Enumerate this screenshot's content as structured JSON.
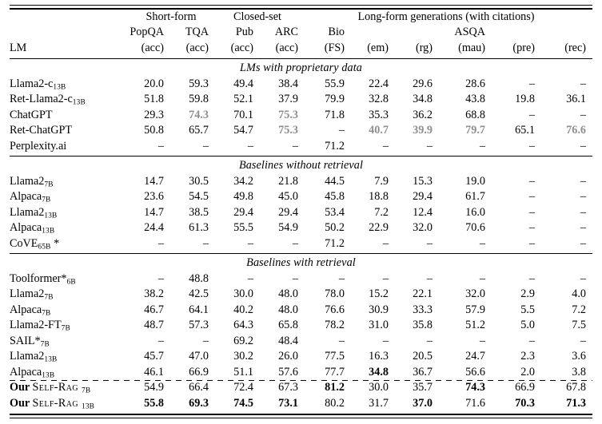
{
  "colors": {
    "highlight_gray": "#8f8f8f",
    "text": "#000000",
    "background": "#ffffff"
  },
  "table": {
    "lm_header": "LM",
    "groups": [
      {
        "label": "Short-form",
        "cols": 2
      },
      {
        "label": "Closed-set",
        "cols": 2
      },
      {
        "label": "Long-form generations (with citations)",
        "cols": 6
      }
    ],
    "col_names": [
      "PopQA",
      "TQA",
      "Pub",
      "ARC",
      "Bio",
      "",
      "",
      "ASQA",
      "",
      ""
    ],
    "col_metrics": [
      "(acc)",
      "(acc)",
      "(acc)",
      "(acc)",
      "(FS)",
      "(em)",
      "(rg)",
      "(mau)",
      "(pre)",
      "(rec)"
    ],
    "sections": [
      {
        "title": "LMs with proprietary data",
        "dashed_top": false,
        "rows": [
          {
            "lm": {
              "text": "Llama2-c",
              "sub": "13B"
            },
            "values": [
              "20.0",
              "59.3",
              "49.4",
              "38.4",
              "55.9",
              "22.4",
              "29.6",
              "28.6",
              "–",
              "–"
            ],
            "styles": "nnnnnnnnnn"
          },
          {
            "lm": {
              "text": "Ret-Llama2-c",
              "sub": "13B"
            },
            "values": [
              "51.8",
              "59.8",
              "52.1",
              "37.9",
              "79.9",
              "32.8",
              "34.8",
              "43.8",
              "19.8",
              "36.1"
            ],
            "styles": "nnnnnnnnnn"
          },
          {
            "lm": {
              "text": "ChatGPT"
            },
            "values": [
              "29.3",
              "74.3",
              "70.1",
              "75.3",
              "71.8",
              "35.3",
              "36.2",
              "68.8",
              "–",
              "–"
            ],
            "styles": "ngngnnnnnn"
          },
          {
            "lm": {
              "text": "Ret-ChatGPT"
            },
            "values": [
              "50.8",
              "65.7",
              "54.7",
              "75.3",
              "–",
              "40.7",
              "39.9",
              "79.7",
              "65.1",
              "76.6"
            ],
            "styles": "nnngngggng"
          },
          {
            "lm": {
              "text": "Perplexity.ai"
            },
            "values": [
              "–",
              "–",
              "–",
              "–",
              "71.2",
              "–",
              "–",
              "–",
              "–",
              "–"
            ],
            "styles": "nnnnnnnnnn"
          }
        ]
      },
      {
        "title": "Baselines without retrieval",
        "dashed_top": false,
        "rows": [
          {
            "lm": {
              "text": "Llama2",
              "sub": "7B"
            },
            "values": [
              "14.7",
              "30.5",
              "34.2",
              "21.8",
              "44.5",
              "7.9",
              "15.3",
              "19.0",
              "–",
              "–"
            ],
            "styles": "nnnnnnnnnn"
          },
          {
            "lm": {
              "text": "Alpaca",
              "sub": "7B"
            },
            "values": [
              "23.6",
              "54.5",
              "49.8",
              "45.0",
              "45.8",
              "18.8",
              "29.4",
              "61.7",
              "–",
              "–"
            ],
            "styles": "nnnnnnnnnn"
          },
          {
            "lm": {
              "text": "Llama2",
              "sub": "13B"
            },
            "values": [
              "14.7",
              "38.5",
              "29.4",
              "29.4",
              "53.4",
              "7.2",
              "12.4",
              "16.0",
              "–",
              "–"
            ],
            "styles": "nnnnnnnnnn"
          },
          {
            "lm": {
              "text": "Alpaca",
              "sub": "13B"
            },
            "values": [
              "24.4",
              "61.3",
              "55.5",
              "54.9",
              "50.2",
              "22.9",
              "32.0",
              "70.6",
              "–",
              "–"
            ],
            "styles": "nnnnnnnnnn"
          },
          {
            "lm": {
              "text": "CoVE",
              "sub": "65B",
              "suffix": " *"
            },
            "values": [
              "–",
              "–",
              "–",
              "–",
              "71.2",
              "–",
              "–",
              "–",
              "–",
              "–"
            ],
            "styles": "nnnnnnnnnn"
          }
        ]
      },
      {
        "title": "Baselines with retrieval",
        "dashed_top": false,
        "rows": [
          {
            "lm": {
              "text": "Toolformer*",
              "sub": "6B"
            },
            "values": [
              "–",
              "48.8",
              "–",
              "–",
              "–",
              "–",
              "–",
              "–",
              "–",
              "–"
            ],
            "styles": "nnnnnnnnnn"
          },
          {
            "lm": {
              "text": "Llama2",
              "sub": "7B"
            },
            "values": [
              "38.2",
              "42.5",
              "30.0",
              "48.0",
              "78.0",
              "15.2",
              "22.1",
              "32.0",
              "2.9",
              "4.0"
            ],
            "styles": "nnnnnnnnnn"
          },
          {
            "lm": {
              "text": "Alpaca",
              "sub": "7B"
            },
            "values": [
              "46.7",
              "64.1",
              "40.2",
              "48.0",
              "76.6",
              "30.9",
              "33.3",
              "57.9",
              "5.5",
              "7.2"
            ],
            "styles": "nnnnnnnnnn"
          },
          {
            "lm": {
              "text": "Llama2-FT",
              "sub": "7B"
            },
            "values": [
              "48.7",
              "57.3",
              "64.3",
              "65.8",
              "78.2",
              "31.0",
              "35.8",
              "51.2",
              "5.0",
              "7.5"
            ],
            "styles": "nnnnnnnnnn"
          },
          {
            "lm": {
              "text": "SAIL*",
              "sub": "7B"
            },
            "values": [
              "–",
              "–",
              "69.2",
              "48.4",
              "–",
              "–",
              "–",
              "–",
              "–",
              "–"
            ],
            "styles": "nnnnnnnnnn"
          },
          {
            "lm": {
              "text": "Llama2",
              "sub": "13B"
            },
            "values": [
              "45.7",
              "47.0",
              "30.2",
              "26.0",
              "77.5",
              "16.3",
              "20.5",
              "24.7",
              "2.3",
              "3.6"
            ],
            "styles": "nnnnnnnnnn"
          },
          {
            "lm": {
              "text": "Alpaca",
              "sub": "13B"
            },
            "values": [
              "46.1",
              "66.9",
              "51.1",
              "57.6",
              "77.7",
              "34.8",
              "36.7",
              "56.6",
              "2.0",
              "3.8"
            ],
            "styles": "nnnnnbnnnn"
          }
        ]
      },
      {
        "title": null,
        "dashed_top": true,
        "rows": [
          {
            "lm": {
              "bold_prefix": "Our ",
              "text": "Self-Rag ",
              "smallcaps": true,
              "sub": "7B"
            },
            "values": [
              "54.9",
              "66.4",
              "72.4",
              "67.3",
              "81.2",
              "30.0",
              "35.7",
              "74.3",
              "66.9",
              "67.8"
            ],
            "styles": "nnnnbnnbnn"
          },
          {
            "lm": {
              "bold_prefix": "Our ",
              "text": "Self-Rag ",
              "smallcaps": true,
              "sub": "13B"
            },
            "values": [
              "55.8",
              "69.3",
              "74.5",
              "73.1",
              "80.2",
              "31.7",
              "37.0",
              "71.6",
              "70.3",
              "71.3"
            ],
            "styles": "bbbbnnbnbb"
          }
        ]
      }
    ]
  }
}
